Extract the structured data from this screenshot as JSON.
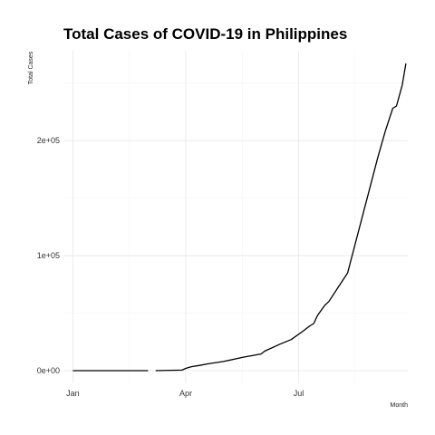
{
  "chart_data": {
    "type": "line",
    "title": "Total Cases of COVID-19 in Philippines",
    "xlabel": "Month",
    "ylabel": "Total Cases",
    "x_ticks": [
      {
        "label": "Jan",
        "value": 0
      },
      {
        "label": "Apr",
        "value": 3
      },
      {
        "label": "Jul",
        "value": 6
      }
    ],
    "x_minor_ticks": [
      1.5,
      4.5,
      7.5
    ],
    "y_ticks": [
      {
        "label": "0e+00",
        "value": 0
      },
      {
        "label": "1e+05",
        "value": 100000
      },
      {
        "label": "2e+05",
        "value": 200000
      }
    ],
    "y_minor_ticks": [
      50000,
      150000,
      250000
    ],
    "xlim": [
      -0.25,
      8.9
    ],
    "ylim": [
      -11000,
      278000
    ],
    "grid": true,
    "series": [
      {
        "segments": [
          [
            [
              0,
              0
            ],
            [
              2.0,
              0
            ]
          ],
          [
            [
              2.2,
              0
            ],
            [
              2.9,
              500
            ],
            [
              3.0,
              2000
            ],
            [
              3.15,
              3500
            ],
            [
              3.35,
              4500
            ],
            [
              3.6,
              6000
            ],
            [
              4.0,
              8000
            ],
            [
              4.5,
              11500
            ],
            [
              5.0,
              14500
            ],
            [
              5.1,
              17000
            ],
            [
              5.5,
              23000
            ],
            [
              5.8,
              27000
            ],
            [
              6.1,
              34000
            ],
            [
              6.3,
              39000
            ],
            [
              6.4,
              41000
            ],
            [
              6.5,
              48000
            ],
            [
              6.7,
              57000
            ],
            [
              6.8,
              60000
            ],
            [
              7.0,
              70000
            ],
            [
              7.3,
              85000
            ],
            [
              7.5,
              110000
            ],
            [
              7.7,
              135000
            ],
            [
              7.9,
              160000
            ],
            [
              8.1,
              185000
            ],
            [
              8.3,
              208000
            ],
            [
              8.5,
              228000
            ],
            [
              8.6,
              230000
            ],
            [
              8.75,
              248000
            ],
            [
              8.85,
              267000
            ]
          ]
        ]
      }
    ]
  }
}
